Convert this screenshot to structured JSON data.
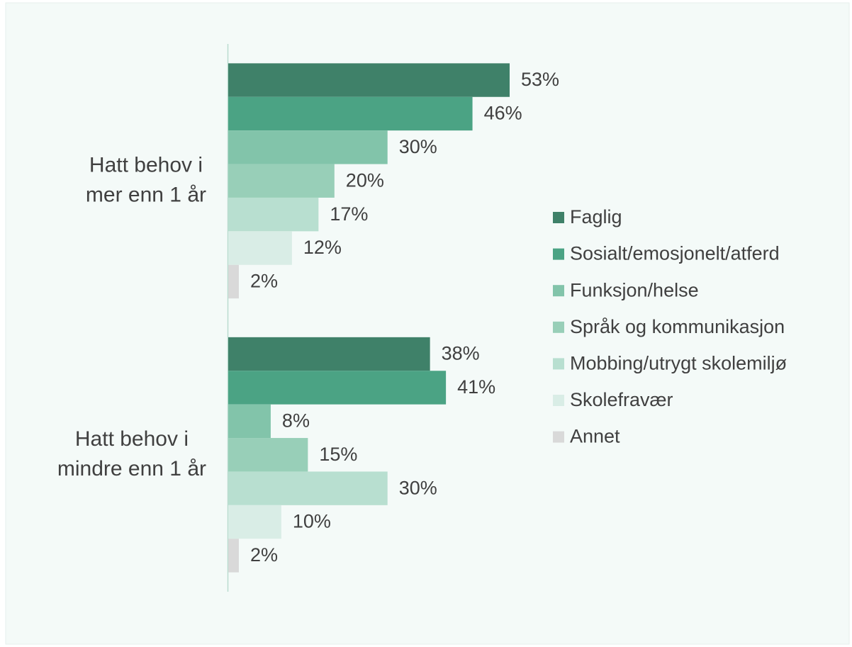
{
  "chart_data": {
    "type": "barh",
    "categories": [
      "Hatt behov i mer enn 1 år",
      "Hatt behov i mindre enn 1 år"
    ],
    "series": [
      {
        "name": "Faglig",
        "color": "#3f8169",
        "values": [
          53,
          38
        ],
        "value_labels": [
          "53%",
          "38%"
        ]
      },
      {
        "name": "Sosialt/emosjonelt/atferd",
        "color": "#4ba384",
        "values": [
          46,
          41
        ],
        "value_labels": [
          "46%",
          "41%"
        ]
      },
      {
        "name": "Funksjon/helse",
        "color": "#82c4aa",
        "values": [
          30,
          8
        ],
        "value_labels": [
          "30%",
          "8%"
        ]
      },
      {
        "name": "Språk og kommunikasjon",
        "color": "#98cfb8",
        "values": [
          20,
          15
        ],
        "value_labels": [
          "20%",
          "15%"
        ]
      },
      {
        "name": "Mobbing/utrygt skolemiljø",
        "color": "#b8dfd0",
        "values": [
          17,
          30
        ],
        "value_labels": [
          "17%",
          "30%"
        ]
      },
      {
        "name": "Skolefravær",
        "color": "#d9ede6",
        "values": [
          12,
          10
        ],
        "value_labels": [
          "12%",
          "10%"
        ]
      },
      {
        "name": "Annet",
        "color": "#d9d9d9",
        "values": [
          2,
          2
        ],
        "value_labels": [
          "2%",
          "2%"
        ]
      }
    ],
    "xlim": [
      0,
      100
    ]
  }
}
